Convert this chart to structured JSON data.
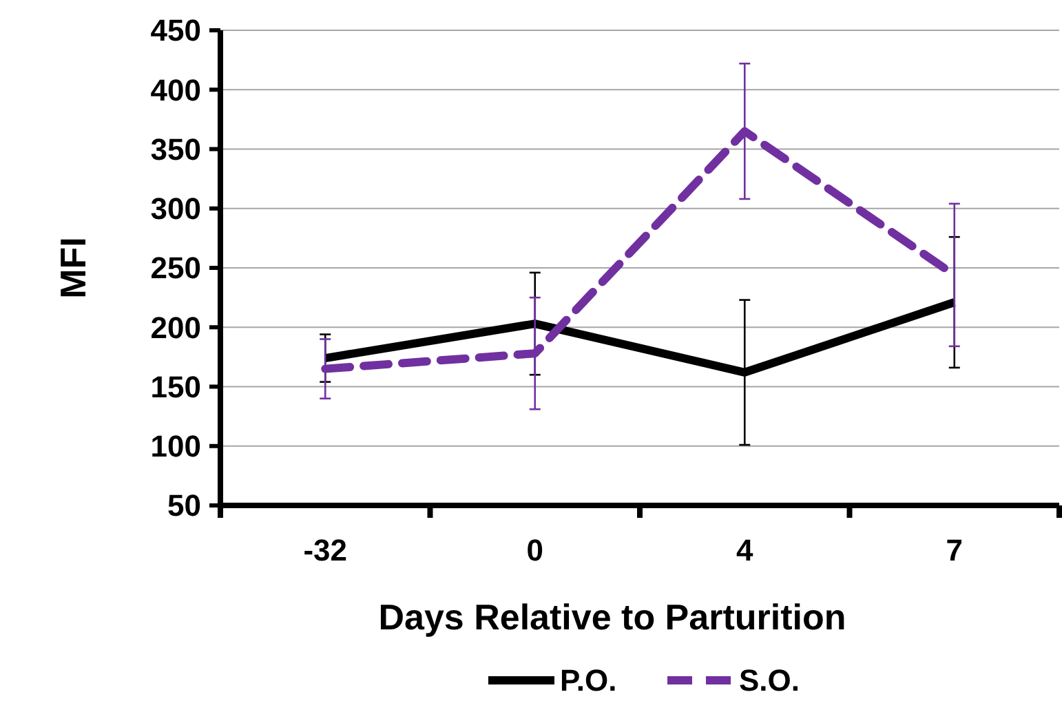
{
  "chart_data": {
    "type": "line",
    "xlabel": "Days Relative to Parturition",
    "ylabel": "MFI",
    "categories": [
      "-32",
      "0",
      "4",
      "7"
    ],
    "series": [
      {
        "name": "P.O.",
        "color": "#000000",
        "line_style": "solid",
        "values": [
          174,
          203,
          162,
          221
        ],
        "errors": [
          20,
          43,
          61,
          55
        ]
      },
      {
        "name": "S.O.",
        "color": "#7030a0",
        "line_style": "dashed",
        "values": [
          165,
          178,
          365,
          244
        ],
        "errors": [
          25,
          47,
          57,
          60
        ]
      }
    ],
    "ylim": [
      50,
      450
    ],
    "yticks": [
      50,
      100,
      150,
      200,
      250,
      300,
      350,
      400,
      450
    ],
    "grid": "y",
    "legend": "bottom",
    "marker": "none"
  }
}
